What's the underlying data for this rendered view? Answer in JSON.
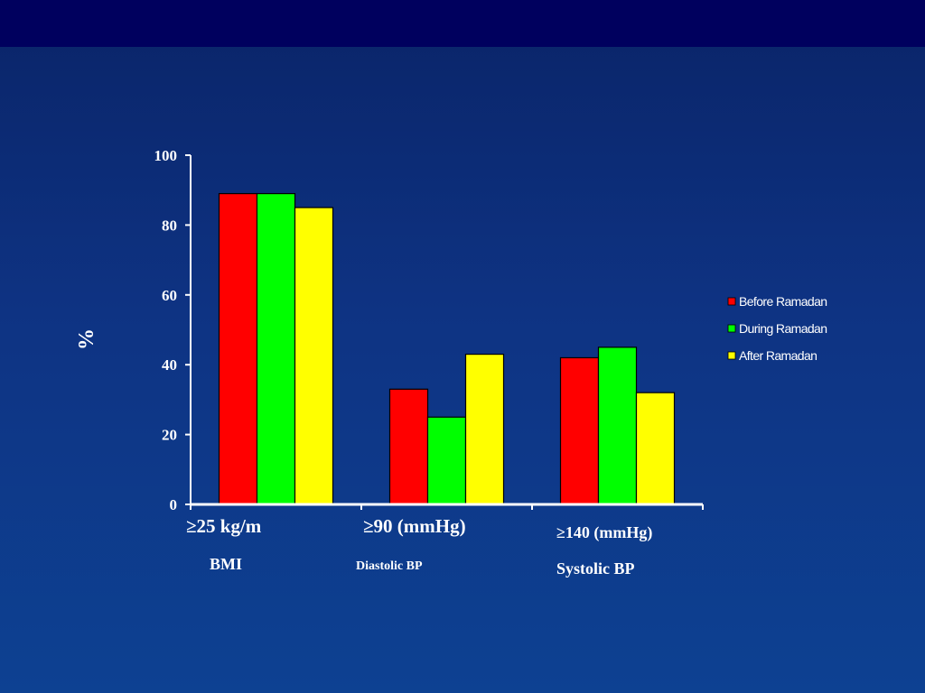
{
  "chart_data": {
    "type": "bar",
    "categories": [
      "BMI",
      "Diastolic BP",
      "Systolic BP"
    ],
    "category_thresholds": [
      "≥25 kg/m",
      "≥90 (mmHg)",
      "≥140 (mmHg)"
    ],
    "series": [
      {
        "name": "Before Ramadan",
        "values": [
          89,
          33,
          42
        ],
        "color": "#ff0000"
      },
      {
        "name": "During Ramadan",
        "values": [
          89,
          25,
          45
        ],
        "color": "#00ff00"
      },
      {
        "name": "After Ramadan",
        "values": [
          85,
          43,
          32
        ],
        "color": "#ffff00"
      }
    ],
    "ylabel": "%",
    "xlabel": "",
    "ylim": [
      0,
      100
    ],
    "yticks": [
      0,
      20,
      40,
      60,
      80,
      100
    ],
    "legend_position": "right",
    "grid": false
  },
  "colors": {
    "background_top": "#00005e",
    "background": "#0e3383",
    "axis": "#ffffff",
    "bar_outline": "#000000"
  }
}
